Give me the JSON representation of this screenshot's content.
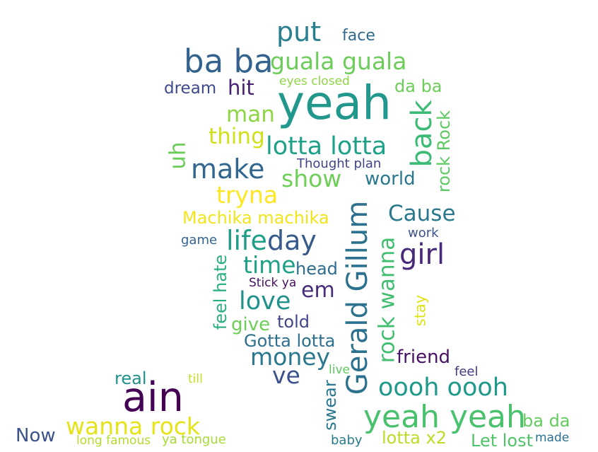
{
  "words": [
    {
      "text": "put",
      "color": "#2a7f8e"
    },
    {
      "text": "face",
      "color": "#30698e"
    },
    {
      "text": "ba ba",
      "color": "#33638d"
    },
    {
      "text": "guala guala",
      "color": "#6ccd5a"
    },
    {
      "text": "dream",
      "color": "#3f4a8a"
    },
    {
      "text": "hit",
      "color": "#482173"
    },
    {
      "text": "eyes closed",
      "color": "#8ed645"
    },
    {
      "text": "yeah",
      "color": "#22978c"
    },
    {
      "text": "da ba",
      "color": "#6ccd5a"
    },
    {
      "text": "man",
      "color": "#8ed645"
    },
    {
      "text": "back",
      "color": "#3cbb75"
    },
    {
      "text": "rock Rock",
      "color": "#5ec962"
    },
    {
      "text": "thing",
      "color": "#d0e11c"
    },
    {
      "text": "lotta lotta",
      "color": "#1fa088"
    },
    {
      "text": "uh",
      "color": "#6ccd5a"
    },
    {
      "text": "make",
      "color": "#31668e"
    },
    {
      "text": "Thought plan",
      "color": "#404387"
    },
    {
      "text": "show",
      "color": "#6ece58"
    },
    {
      "text": "world",
      "color": "#2a788e"
    },
    {
      "text": "tryna",
      "color": "#fde725"
    },
    {
      "text": "Gerald Gillum",
      "color": "#2c718e"
    },
    {
      "text": "Cause",
      "color": "#2a788e"
    },
    {
      "text": "Machika machika",
      "color": "#f1e51d"
    },
    {
      "text": "work",
      "color": "#3b528b"
    },
    {
      "text": "game",
      "color": "#33638d"
    },
    {
      "text": "life",
      "color": "#1f9e89"
    },
    {
      "text": "day",
      "color": "#38598c"
    },
    {
      "text": "rock wanna",
      "color": "#42be71"
    },
    {
      "text": "girl",
      "color": "#482878"
    },
    {
      "text": "time",
      "color": "#1fa187"
    },
    {
      "text": "head",
      "color": "#2f6c8e"
    },
    {
      "text": "feel hate",
      "color": "#29af7f"
    },
    {
      "text": "Stick ya",
      "color": "#471063"
    },
    {
      "text": "em",
      "color": "#472c7a"
    },
    {
      "text": "stay",
      "color": "#dde318"
    },
    {
      "text": "love",
      "color": "#21918c"
    },
    {
      "text": "give",
      "color": "#6ece58"
    },
    {
      "text": "told",
      "color": "#404688"
    },
    {
      "text": "Gotta lotta",
      "color": "#2d708e"
    },
    {
      "text": "money",
      "color": "#2a788e"
    },
    {
      "text": "friend",
      "color": "#471365"
    },
    {
      "text": "ve",
      "color": "#3b528b"
    },
    {
      "text": "live",
      "color": "#5ec962"
    },
    {
      "text": "feel",
      "color": "#443983"
    },
    {
      "text": "real",
      "color": "#21918c"
    },
    {
      "text": "till",
      "color": "#c2df23"
    },
    {
      "text": "oooh oooh",
      "color": "#1f9a8a"
    },
    {
      "text": "ain",
      "color": "#440154"
    },
    {
      "text": "swear",
      "color": "#2a788e"
    },
    {
      "text": "yeah yeah",
      "color": "#4ac16d"
    },
    {
      "text": "ba da",
      "color": "#63cb5f"
    },
    {
      "text": "wanna rock",
      "color": "#e5e419"
    },
    {
      "text": "made",
      "color": "#2c718e"
    },
    {
      "text": "Now",
      "color": "#3b528b"
    },
    {
      "text": "long famous",
      "color": "#b2dd2d"
    },
    {
      "text": "ya tongue",
      "color": "#a8db34"
    },
    {
      "text": "baby",
      "color": "#287c8e"
    },
    {
      "text": "lotta x2",
      "color": "#bade28"
    },
    {
      "text": "Let lost",
      "color": "#50c46a"
    }
  ]
}
